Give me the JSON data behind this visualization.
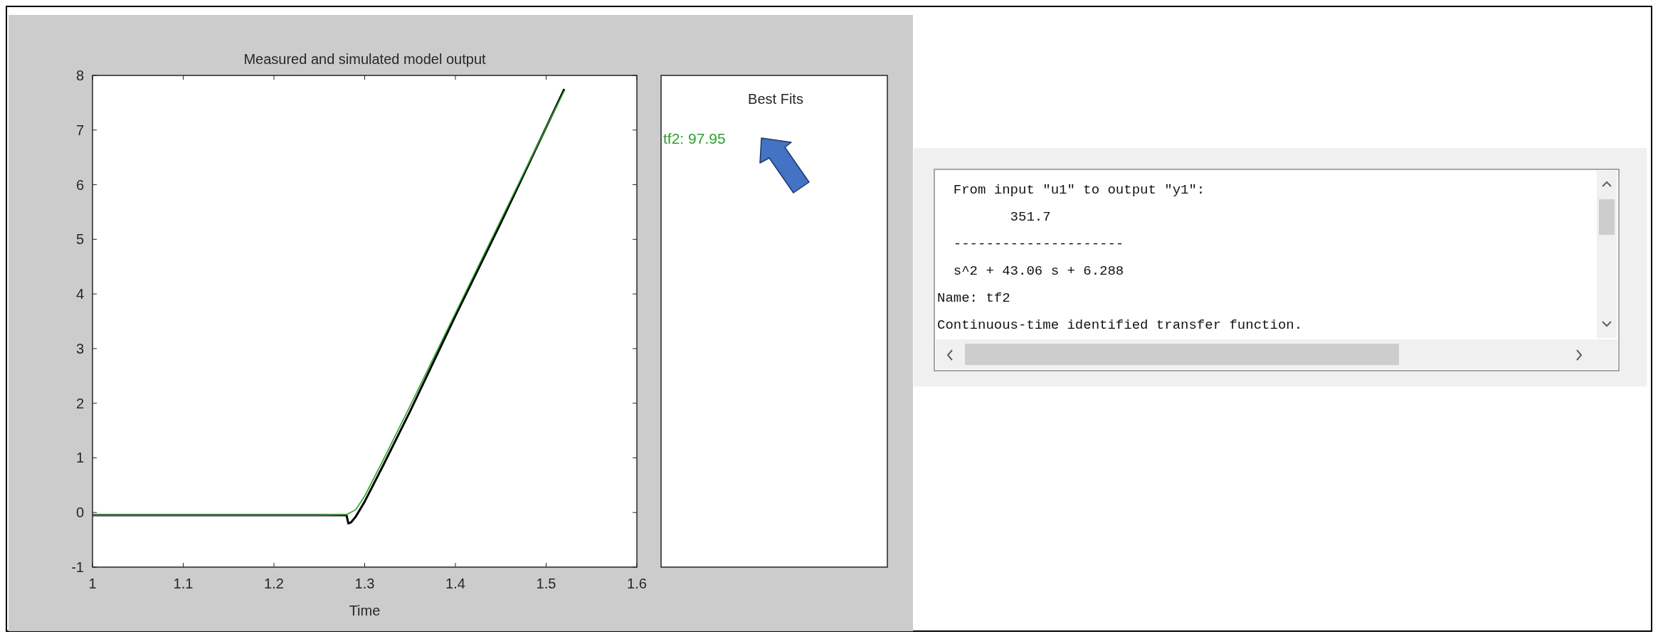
{
  "chart_data": [
    {
      "type": "line",
      "title": "Measured and simulated model output",
      "xlabel": "Time",
      "xlim": [
        1,
        1.6
      ],
      "xticks": [
        1,
        1.1,
        1.2,
        1.3,
        1.4,
        1.5,
        1.6
      ],
      "ylim": [
        -1,
        8
      ],
      "yticks": [
        -1,
        0,
        1,
        2,
        3,
        4,
        5,
        6,
        7,
        8
      ],
      "grid": false,
      "series": [
        {
          "color": "#000000",
          "x": [
            1,
            1.05,
            1.1,
            1.15,
            1.2,
            1.25,
            1.28,
            1.282,
            1.285,
            1.29,
            1.3,
            1.32,
            1.35,
            1.4,
            1.45,
            1.5,
            1.52
          ],
          "values": [
            -0.05,
            -0.05,
            -0.05,
            -0.05,
            -0.05,
            -0.05,
            -0.05,
            -0.2,
            -0.18,
            -0.08,
            0.2,
            0.85,
            1.85,
            3.6,
            5.3,
            7.05,
            7.75
          ]
        },
        {
          "color": "#2ca02c",
          "x": [
            1,
            1.05,
            1.1,
            1.15,
            1.2,
            1.25,
            1.28,
            1.29,
            1.3,
            1.32,
            1.35,
            1.4,
            1.45,
            1.5,
            1.52
          ],
          "values": [
            -0.05,
            -0.05,
            -0.05,
            -0.05,
            -0.05,
            -0.05,
            -0.04,
            0.05,
            0.3,
            0.95,
            1.95,
            3.65,
            5.35,
            7.05,
            7.72
          ]
        }
      ]
    },
    {
      "type": "other",
      "title": "Best Fits",
      "annotations": [
        "tf2: 97.95"
      ]
    },
    {
      "type": "other",
      "annotations": [
        "  From input \"u1\" to output \"y1\":",
        "         351.7",
        "  ---------------------",
        "  s^2 + 43.06 s + 6.288",
        "Name: tf2",
        "Continuous-time identified transfer function."
      ]
    }
  ]
}
